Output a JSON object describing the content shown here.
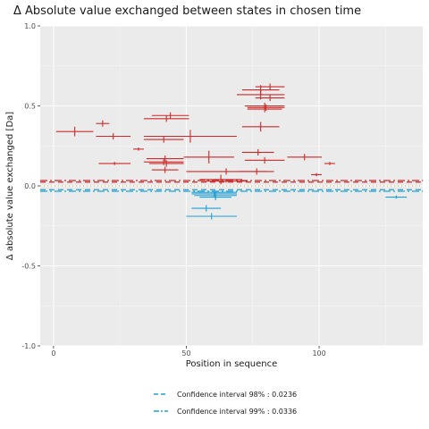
{
  "chart_data": {
    "type": "errorbar-scatter",
    "title": "Δ Absolute value exchanged between states in chosen time",
    "xlabel": "Position in sequence",
    "ylabel": "Δ absolute value exchanged [Da]",
    "xlim": [
      -5,
      139
    ],
    "ylim": [
      -1.0,
      1.0
    ],
    "x_ticks": [
      0,
      50,
      100
    ],
    "x_tick_labels": [
      "0",
      "50",
      "100"
    ],
    "y_ticks": [
      -1.0,
      -0.5,
      0.0,
      0.5,
      1.0
    ],
    "y_tick_labels": [
      "-1.0",
      "-0.5",
      "0.0",
      "0.5",
      "1.0"
    ],
    "grid": true,
    "legend_position": "bottom",
    "colors": {
      "positive": "#cc2a2a",
      "negative": "#1f9fd6",
      "panel": "#ebebeb",
      "grid": "#ffffff"
    },
    "confidence_lines": [
      {
        "label": "Confidence interval 98% : 0.0236",
        "value": 0.0236,
        "style": "dashed"
      },
      {
        "label": "Confidence interval 99% : 0.0336",
        "value": 0.0336,
        "style": "dotdash"
      }
    ],
    "segments": [
      {
        "x1": 1,
        "x2": 15,
        "y": 0.34,
        "err": 0.03
      },
      {
        "x1": 16,
        "x2": 21,
        "y": 0.39,
        "err": 0.02
      },
      {
        "x1": 16,
        "x2": 29,
        "y": 0.31,
        "err": 0.02
      },
      {
        "x1": 17,
        "x2": 29,
        "y": 0.14,
        "err": 0.01
      },
      {
        "x1": 30,
        "x2": 34,
        "y": 0.23,
        "err": 0.01
      },
      {
        "x1": 34,
        "x2": 51,
        "y": 0.42,
        "err": 0.02
      },
      {
        "x1": 37,
        "x2": 51,
        "y": 0.44,
        "err": 0.02
      },
      {
        "x1": 34,
        "x2": 49,
        "y": 0.29,
        "err": 0.02
      },
      {
        "x1": 34,
        "x2": 69,
        "y": 0.31,
        "err": 0.04
      },
      {
        "x1": 35,
        "x2": 49,
        "y": 0.17,
        "err": 0.02
      },
      {
        "x1": 34,
        "x2": 49,
        "y": 0.15,
        "err": 0.02
      },
      {
        "x1": 36,
        "x2": 49,
        "y": 0.14,
        "err": 0.02
      },
      {
        "x1": 37,
        "x2": 47,
        "y": 0.1,
        "err": 0.02
      },
      {
        "x1": 49,
        "x2": 68,
        "y": 0.18,
        "err": 0.04
      },
      {
        "x1": 50,
        "x2": 80,
        "y": 0.09,
        "err": 0.02
      },
      {
        "x1": 55,
        "x2": 71,
        "y": 0.04,
        "err": 0.03
      },
      {
        "x1": 57,
        "x2": 73,
        "y": 0.03,
        "err": 0.01
      },
      {
        "x1": 71,
        "x2": 83,
        "y": 0.21,
        "err": 0.02
      },
      {
        "x1": 72,
        "x2": 87,
        "y": 0.16,
        "err": 0.02
      },
      {
        "x1": 70,
        "x2": 83,
        "y": 0.09,
        "err": 0.02
      },
      {
        "x1": 71,
        "x2": 85,
        "y": 0.37,
        "err": 0.03
      },
      {
        "x1": 69,
        "x2": 87,
        "y": 0.57,
        "err": 0.03
      },
      {
        "x1": 71,
        "x2": 85,
        "y": 0.6,
        "err": 0.03
      },
      {
        "x1": 76,
        "x2": 87,
        "y": 0.62,
        "err": 0.02
      },
      {
        "x1": 76,
        "x2": 87,
        "y": 0.55,
        "err": 0.02
      },
      {
        "x1": 72,
        "x2": 87,
        "y": 0.5,
        "err": 0.02
      },
      {
        "x1": 73,
        "x2": 87,
        "y": 0.49,
        "err": 0.02
      },
      {
        "x1": 73,
        "x2": 86,
        "y": 0.48,
        "err": 0.02
      },
      {
        "x1": 88,
        "x2": 101,
        "y": 0.18,
        "err": 0.02
      },
      {
        "x1": 97,
        "x2": 101,
        "y": 0.07,
        "err": 0.01
      },
      {
        "x1": 102,
        "x2": 106,
        "y": 0.14,
        "err": 0.01
      },
      {
        "x1": 52,
        "x2": 69,
        "y": -0.04,
        "err": 0.01
      },
      {
        "x1": 52,
        "x2": 69,
        "y": -0.05,
        "err": 0.02
      },
      {
        "x1": 53,
        "x2": 69,
        "y": -0.06,
        "err": 0.02
      },
      {
        "x1": 55,
        "x2": 67,
        "y": -0.07,
        "err": 0.02
      },
      {
        "x1": 52,
        "x2": 63,
        "y": -0.14,
        "err": 0.02
      },
      {
        "x1": 50,
        "x2": 69,
        "y": -0.19,
        "err": 0.02
      },
      {
        "x1": 125,
        "x2": 133,
        "y": -0.07,
        "err": 0.01
      }
    ]
  }
}
